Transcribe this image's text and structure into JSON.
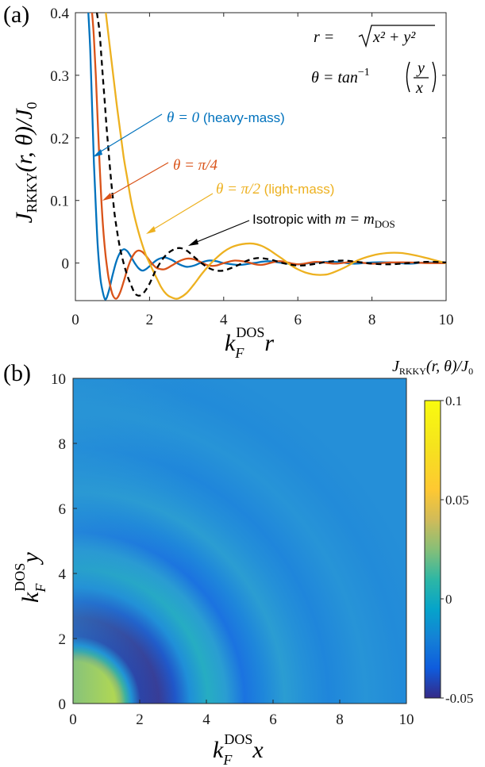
{
  "chart_data": [
    {
      "panel": "(a)",
      "type": "line",
      "xlabel": "k_F^DOS r",
      "xlabel_parts": {
        "k": "k",
        "sub": "F",
        "sup": "DOS",
        "var": "r"
      },
      "ylabel": "J_RKKY(r,θ)/J_0",
      "ylabel_text": "J",
      "ylabel_sub": "RKKY",
      "ylabel_tail": "(r, θ)/J",
      "ylabel_sub2": "0",
      "xlim": [
        0,
        10
      ],
      "ylim": [
        -0.06,
        0.4
      ],
      "xticks": [
        "0",
        "2",
        "4",
        "6",
        "8",
        "10"
      ],
      "yticks": [
        "0",
        "0.1",
        "0.2",
        "0.3",
        "0.4"
      ],
      "equations": {
        "r_def": "r = √(x² + y²)",
        "r_lhs": "r = ",
        "r_rad": "x² + y²",
        "theta_def": "θ = tan⁻¹(y/x)",
        "theta_lhs": "θ = tan",
        "theta_sup": "−1",
        "theta_num": "y",
        "theta_den": "x"
      },
      "series": [
        {
          "name": "θ = 0 (heavy-mass)",
          "color": "#0072BD",
          "x": [
            0.35,
            0.4,
            0.45,
            0.5,
            0.55,
            0.6,
            0.65,
            0.7,
            0.8,
            0.9,
            1.0,
            1.1,
            1.2,
            1.3,
            1.4,
            1.5,
            1.6,
            1.7,
            1.8,
            1.9,
            2.0,
            2.2,
            2.4,
            2.6,
            2.8,
            3.0,
            3.2,
            3.4,
            3.6,
            3.8,
            4.0,
            4.4,
            4.8,
            5.2,
            5.6,
            6.0,
            6.5,
            7.0,
            7.5,
            8.0,
            8.5,
            9.0,
            9.5,
            10.0
          ],
          "y": [
            0.4,
            0.34,
            0.25,
            0.16,
            0.09,
            0.03,
            -0.01,
            -0.035,
            -0.058,
            -0.045,
            -0.02,
            0.002,
            0.016,
            0.022,
            0.019,
            0.01,
            0.0,
            -0.008,
            -0.012,
            -0.01,
            -0.005,
            0.005,
            0.009,
            0.005,
            -0.002,
            -0.006,
            -0.004,
            0.001,
            0.004,
            0.003,
            0.0,
            -0.003,
            0.0,
            0.003,
            0.0,
            -0.002,
            0.001,
            0.002,
            -0.001,
            0.001,
            0.001,
            -0.001,
            0.001,
            0.0
          ]
        },
        {
          "name": "θ = π/4",
          "color": "#D95319",
          "x": [
            0.45,
            0.5,
            0.55,
            0.6,
            0.65,
            0.7,
            0.75,
            0.8,
            0.85,
            0.9,
            1.0,
            1.1,
            1.2,
            1.3,
            1.4,
            1.5,
            1.6,
            1.7,
            1.8,
            1.9,
            2.0,
            2.1,
            2.2,
            2.4,
            2.6,
            2.8,
            3.0,
            3.2,
            3.4,
            3.6,
            3.8,
            4.0,
            4.3,
            4.6,
            5.0,
            5.5,
            6.0,
            6.5,
            7.0,
            7.5,
            8.0,
            8.5,
            9.0,
            9.5,
            10.0
          ],
          "y": [
            0.4,
            0.36,
            0.3,
            0.23,
            0.16,
            0.1,
            0.055,
            0.02,
            -0.005,
            -0.025,
            -0.05,
            -0.057,
            -0.048,
            -0.03,
            -0.01,
            0.006,
            0.016,
            0.02,
            0.018,
            0.012,
            0.004,
            -0.003,
            -0.008,
            -0.01,
            -0.004,
            0.003,
            0.007,
            0.006,
            0.001,
            -0.004,
            -0.004,
            0.0,
            0.004,
            0.002,
            -0.003,
            0.003,
            -0.002,
            0.002,
            -0.001,
            0.002,
            -0.001,
            0.001,
            0.001,
            0.0,
            0.0
          ]
        },
        {
          "name": "θ = π/2 (light-mass)",
          "color": "#EDB120",
          "x": [
            0.82,
            0.9,
            1.0,
            1.1,
            1.2,
            1.3,
            1.4,
            1.5,
            1.6,
            1.7,
            1.8,
            1.9,
            2.0,
            2.1,
            2.2,
            2.3,
            2.4,
            2.5,
            2.6,
            2.7,
            2.8,
            3.0,
            3.2,
            3.4,
            3.6,
            3.8,
            4.0,
            4.2,
            4.4,
            4.6,
            4.8,
            5.0,
            5.2,
            5.4,
            5.6,
            5.8,
            6.0,
            6.2,
            6.4,
            6.6,
            6.8,
            7.0,
            7.3,
            7.6,
            8.0,
            8.4,
            8.8,
            9.2,
            9.6,
            10.0
          ],
          "y": [
            0.4,
            0.36,
            0.31,
            0.26,
            0.215,
            0.17,
            0.135,
            0.1,
            0.073,
            0.05,
            0.03,
            0.013,
            0.0,
            -0.013,
            -0.025,
            -0.037,
            -0.046,
            -0.052,
            -0.055,
            -0.057,
            -0.056,
            -0.048,
            -0.034,
            -0.018,
            -0.004,
            0.008,
            0.018,
            0.025,
            0.029,
            0.031,
            0.031,
            0.028,
            0.022,
            0.014,
            0.006,
            -0.003,
            -0.01,
            -0.015,
            -0.018,
            -0.019,
            -0.018,
            -0.014,
            -0.006,
            0.004,
            0.012,
            0.016,
            0.016,
            0.012,
            0.006,
            0.0
          ]
        },
        {
          "name": "Isotropic with m = m_DOS",
          "color": "#000000",
          "dashed": true,
          "x": [
            0.58,
            0.65,
            0.7,
            0.75,
            0.8,
            0.85,
            0.9,
            0.95,
            1.0,
            1.05,
            1.1,
            1.2,
            1.3,
            1.4,
            1.5,
            1.6,
            1.7,
            1.8,
            1.9,
            2.0,
            2.1,
            2.2,
            2.4,
            2.6,
            2.8,
            3.0,
            3.2,
            3.4,
            3.6,
            3.8,
            4.0,
            4.2,
            4.4,
            4.6,
            4.8,
            5.0,
            5.3,
            5.6,
            6.0,
            6.4,
            6.8,
            7.2,
            7.6,
            8.0,
            8.5,
            9.0,
            9.5,
            10.0
          ],
          "y": [
            0.4,
            0.37,
            0.33,
            0.29,
            0.25,
            0.21,
            0.175,
            0.14,
            0.11,
            0.082,
            0.06,
            0.025,
            0.0,
            -0.02,
            -0.035,
            -0.048,
            -0.052,
            -0.05,
            -0.043,
            -0.033,
            -0.02,
            -0.008,
            0.01,
            0.02,
            0.024,
            0.02,
            0.01,
            0.0,
            -0.008,
            -0.012,
            -0.012,
            -0.008,
            -0.003,
            0.003,
            0.007,
            0.008,
            0.005,
            0.0,
            -0.004,
            -0.002,
            0.002,
            0.004,
            0.002,
            -0.001,
            -0.002,
            0.0,
            0.002,
            0.001
          ]
        }
      ],
      "annotations": {
        "a1_text": "θ = 0 (heavy-mass)",
        "a1_math": "θ = 0",
        "a1_tail": " (heavy-mass)",
        "a2_text": "θ = π/4",
        "a3_math": "θ = π/2",
        "a3_tail": " (light-mass)",
        "a4_pre": "Isotropic with ",
        "a4_math": "m = m",
        "a4_sub": "DOS"
      }
    },
    {
      "panel": "(b)",
      "type": "heatmap",
      "xlabel": "k_F^DOS x",
      "xlabel_var": "x",
      "ylabel": "k_F^DOS y",
      "ylabel_var": "y",
      "xlim": [
        0,
        10
      ],
      "ylim": [
        0,
        10
      ],
      "xticks": [
        "0",
        "2",
        "4",
        "6",
        "8",
        "10"
      ],
      "yticks": [
        "0",
        "2",
        "4",
        "6",
        "8",
        "10"
      ],
      "colorbar": {
        "title_main": "J",
        "title_sub": "RKKY",
        "title_tail": "(r, θ)/J",
        "title_sub2": "0",
        "range": [
          -0.05,
          0.1
        ],
        "ticks": [
          "0.1",
          "0.05",
          "0",
          "-0.05"
        ],
        "colormap": "parula"
      }
    }
  ]
}
